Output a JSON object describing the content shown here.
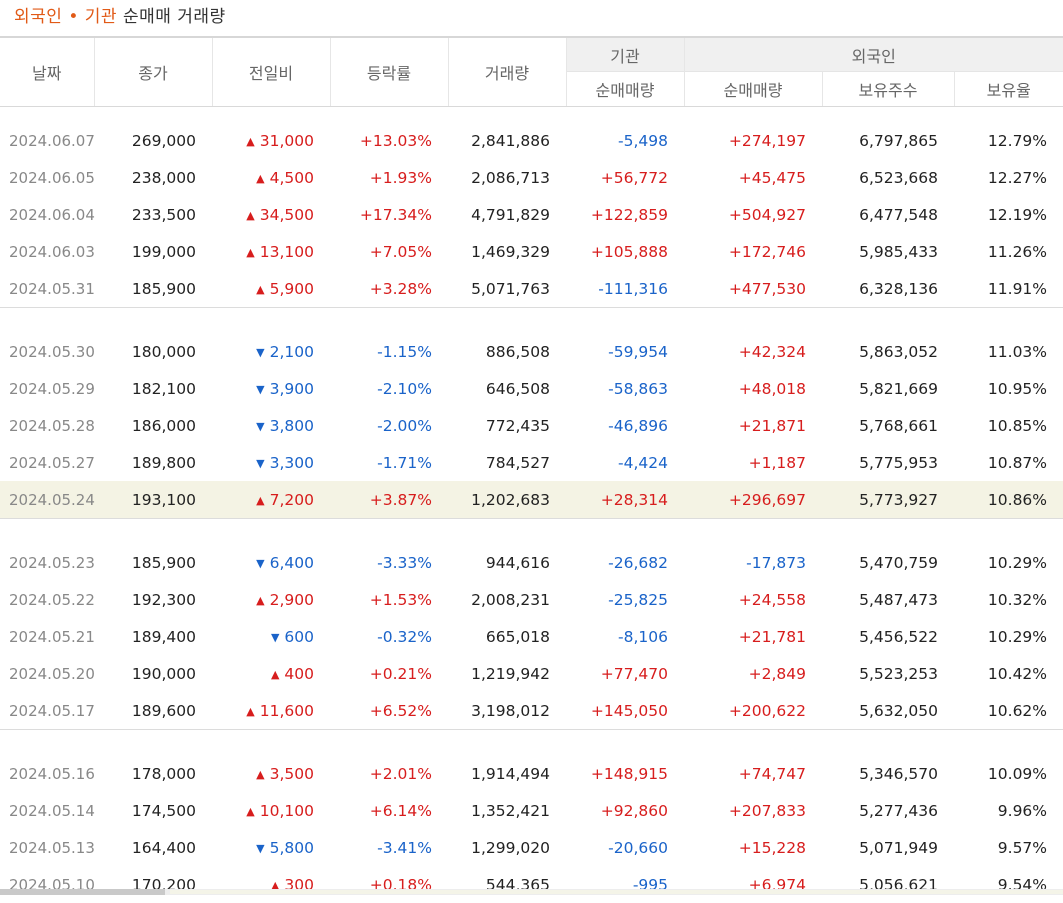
{
  "title": {
    "part1": "외국인",
    "dot": "•",
    "part2": "기관",
    "rest": "순매매 거래량"
  },
  "headers": {
    "date": "날짜",
    "close": "종가",
    "change": "전일비",
    "rate": "등락률",
    "volume": "거래량",
    "institution": "기관",
    "foreign": "외국인",
    "inst_net": "순매매량",
    "foreign_net": "순매매량",
    "holdings": "보유주수",
    "ratio": "보유율"
  },
  "colors": {
    "up": "#d71d1d",
    "down": "#1a63c9",
    "highlight": "#f4f3e4",
    "accent": "#e15a17"
  },
  "icons": {
    "up": "up-triangle-icon",
    "down": "down-triangle-icon"
  },
  "groups": [
    {
      "rows": [
        {
          "date": "2024.06.07",
          "close": "269,000",
          "dir": "up",
          "change": "31,000",
          "rate": "+13.03%",
          "volume": "2,841,886",
          "inst": "-5,498",
          "foreign": "+274,197",
          "holdings": "6,797,865",
          "ratio": "12.79%"
        },
        {
          "date": "2024.06.05",
          "close": "238,000",
          "dir": "up",
          "change": "4,500",
          "rate": "+1.93%",
          "volume": "2,086,713",
          "inst": "+56,772",
          "foreign": "+45,475",
          "holdings": "6,523,668",
          "ratio": "12.27%"
        },
        {
          "date": "2024.06.04",
          "close": "233,500",
          "dir": "up",
          "change": "34,500",
          "rate": "+17.34%",
          "volume": "4,791,829",
          "inst": "+122,859",
          "foreign": "+504,927",
          "holdings": "6,477,548",
          "ratio": "12.19%"
        },
        {
          "date": "2024.06.03",
          "close": "199,000",
          "dir": "up",
          "change": "13,100",
          "rate": "+7.05%",
          "volume": "1,469,329",
          "inst": "+105,888",
          "foreign": "+172,746",
          "holdings": "5,985,433",
          "ratio": "11.26%"
        },
        {
          "date": "2024.05.31",
          "close": "185,900",
          "dir": "up",
          "change": "5,900",
          "rate": "+3.28%",
          "volume": "5,071,763",
          "inst": "-111,316",
          "foreign": "+477,530",
          "holdings": "6,328,136",
          "ratio": "11.91%"
        }
      ]
    },
    {
      "rows": [
        {
          "date": "2024.05.30",
          "close": "180,000",
          "dir": "down",
          "change": "2,100",
          "rate": "-1.15%",
          "volume": "886,508",
          "inst": "-59,954",
          "foreign": "+42,324",
          "holdings": "5,863,052",
          "ratio": "11.03%"
        },
        {
          "date": "2024.05.29",
          "close": "182,100",
          "dir": "down",
          "change": "3,900",
          "rate": "-2.10%",
          "volume": "646,508",
          "inst": "-58,863",
          "foreign": "+48,018",
          "holdings": "5,821,669",
          "ratio": "10.95%"
        },
        {
          "date": "2024.05.28",
          "close": "186,000",
          "dir": "down",
          "change": "3,800",
          "rate": "-2.00%",
          "volume": "772,435",
          "inst": "-46,896",
          "foreign": "+21,871",
          "holdings": "5,768,661",
          "ratio": "10.85%"
        },
        {
          "date": "2024.05.27",
          "close": "189,800",
          "dir": "down",
          "change": "3,300",
          "rate": "-1.71%",
          "volume": "784,527",
          "inst": "-4,424",
          "foreign": "+1,187",
          "holdings": "5,775,953",
          "ratio": "10.87%"
        },
        {
          "date": "2024.05.24",
          "close": "193,100",
          "dir": "up",
          "change": "7,200",
          "rate": "+3.87%",
          "volume": "1,202,683",
          "inst": "+28,314",
          "foreign": "+296,697",
          "holdings": "5,773,927",
          "ratio": "10.86%",
          "highlight": true
        }
      ]
    },
    {
      "rows": [
        {
          "date": "2024.05.23",
          "close": "185,900",
          "dir": "down",
          "change": "6,400",
          "rate": "-3.33%",
          "volume": "944,616",
          "inst": "-26,682",
          "foreign": "-17,873",
          "holdings": "5,470,759",
          "ratio": "10.29%"
        },
        {
          "date": "2024.05.22",
          "close": "192,300",
          "dir": "up",
          "change": "2,900",
          "rate": "+1.53%",
          "volume": "2,008,231",
          "inst": "-25,825",
          "foreign": "+24,558",
          "holdings": "5,487,473",
          "ratio": "10.32%"
        },
        {
          "date": "2024.05.21",
          "close": "189,400",
          "dir": "down",
          "change": "600",
          "rate": "-0.32%",
          "volume": "665,018",
          "inst": "-8,106",
          "foreign": "+21,781",
          "holdings": "5,456,522",
          "ratio": "10.29%"
        },
        {
          "date": "2024.05.20",
          "close": "190,000",
          "dir": "up",
          "change": "400",
          "rate": "+0.21%",
          "volume": "1,219,942",
          "inst": "+77,470",
          "foreign": "+2,849",
          "holdings": "5,523,253",
          "ratio": "10.42%"
        },
        {
          "date": "2024.05.17",
          "close": "189,600",
          "dir": "up",
          "change": "11,600",
          "rate": "+6.52%",
          "volume": "3,198,012",
          "inst": "+145,050",
          "foreign": "+200,622",
          "holdings": "5,632,050",
          "ratio": "10.62%"
        }
      ]
    },
    {
      "rows": [
        {
          "date": "2024.05.16",
          "close": "178,000",
          "dir": "up",
          "change": "3,500",
          "rate": "+2.01%",
          "volume": "1,914,494",
          "inst": "+148,915",
          "foreign": "+74,747",
          "holdings": "5,346,570",
          "ratio": "10.09%"
        },
        {
          "date": "2024.05.14",
          "close": "174,500",
          "dir": "up",
          "change": "10,100",
          "rate": "+6.14%",
          "volume": "1,352,421",
          "inst": "+92,860",
          "foreign": "+207,833",
          "holdings": "5,277,436",
          "ratio": "9.96%"
        },
        {
          "date": "2024.05.13",
          "close": "164,400",
          "dir": "down",
          "change": "5,800",
          "rate": "-3.41%",
          "volume": "1,299,020",
          "inst": "-20,660",
          "foreign": "+15,228",
          "holdings": "5,071,949",
          "ratio": "9.57%"
        },
        {
          "date": "2024.05.10",
          "close": "170,200",
          "dir": "up",
          "change": "300",
          "rate": "+0.18%",
          "volume": "544,365",
          "inst": "-995",
          "foreign": "+6,974",
          "holdings": "5,056,621",
          "ratio": "9.54%"
        }
      ]
    }
  ]
}
